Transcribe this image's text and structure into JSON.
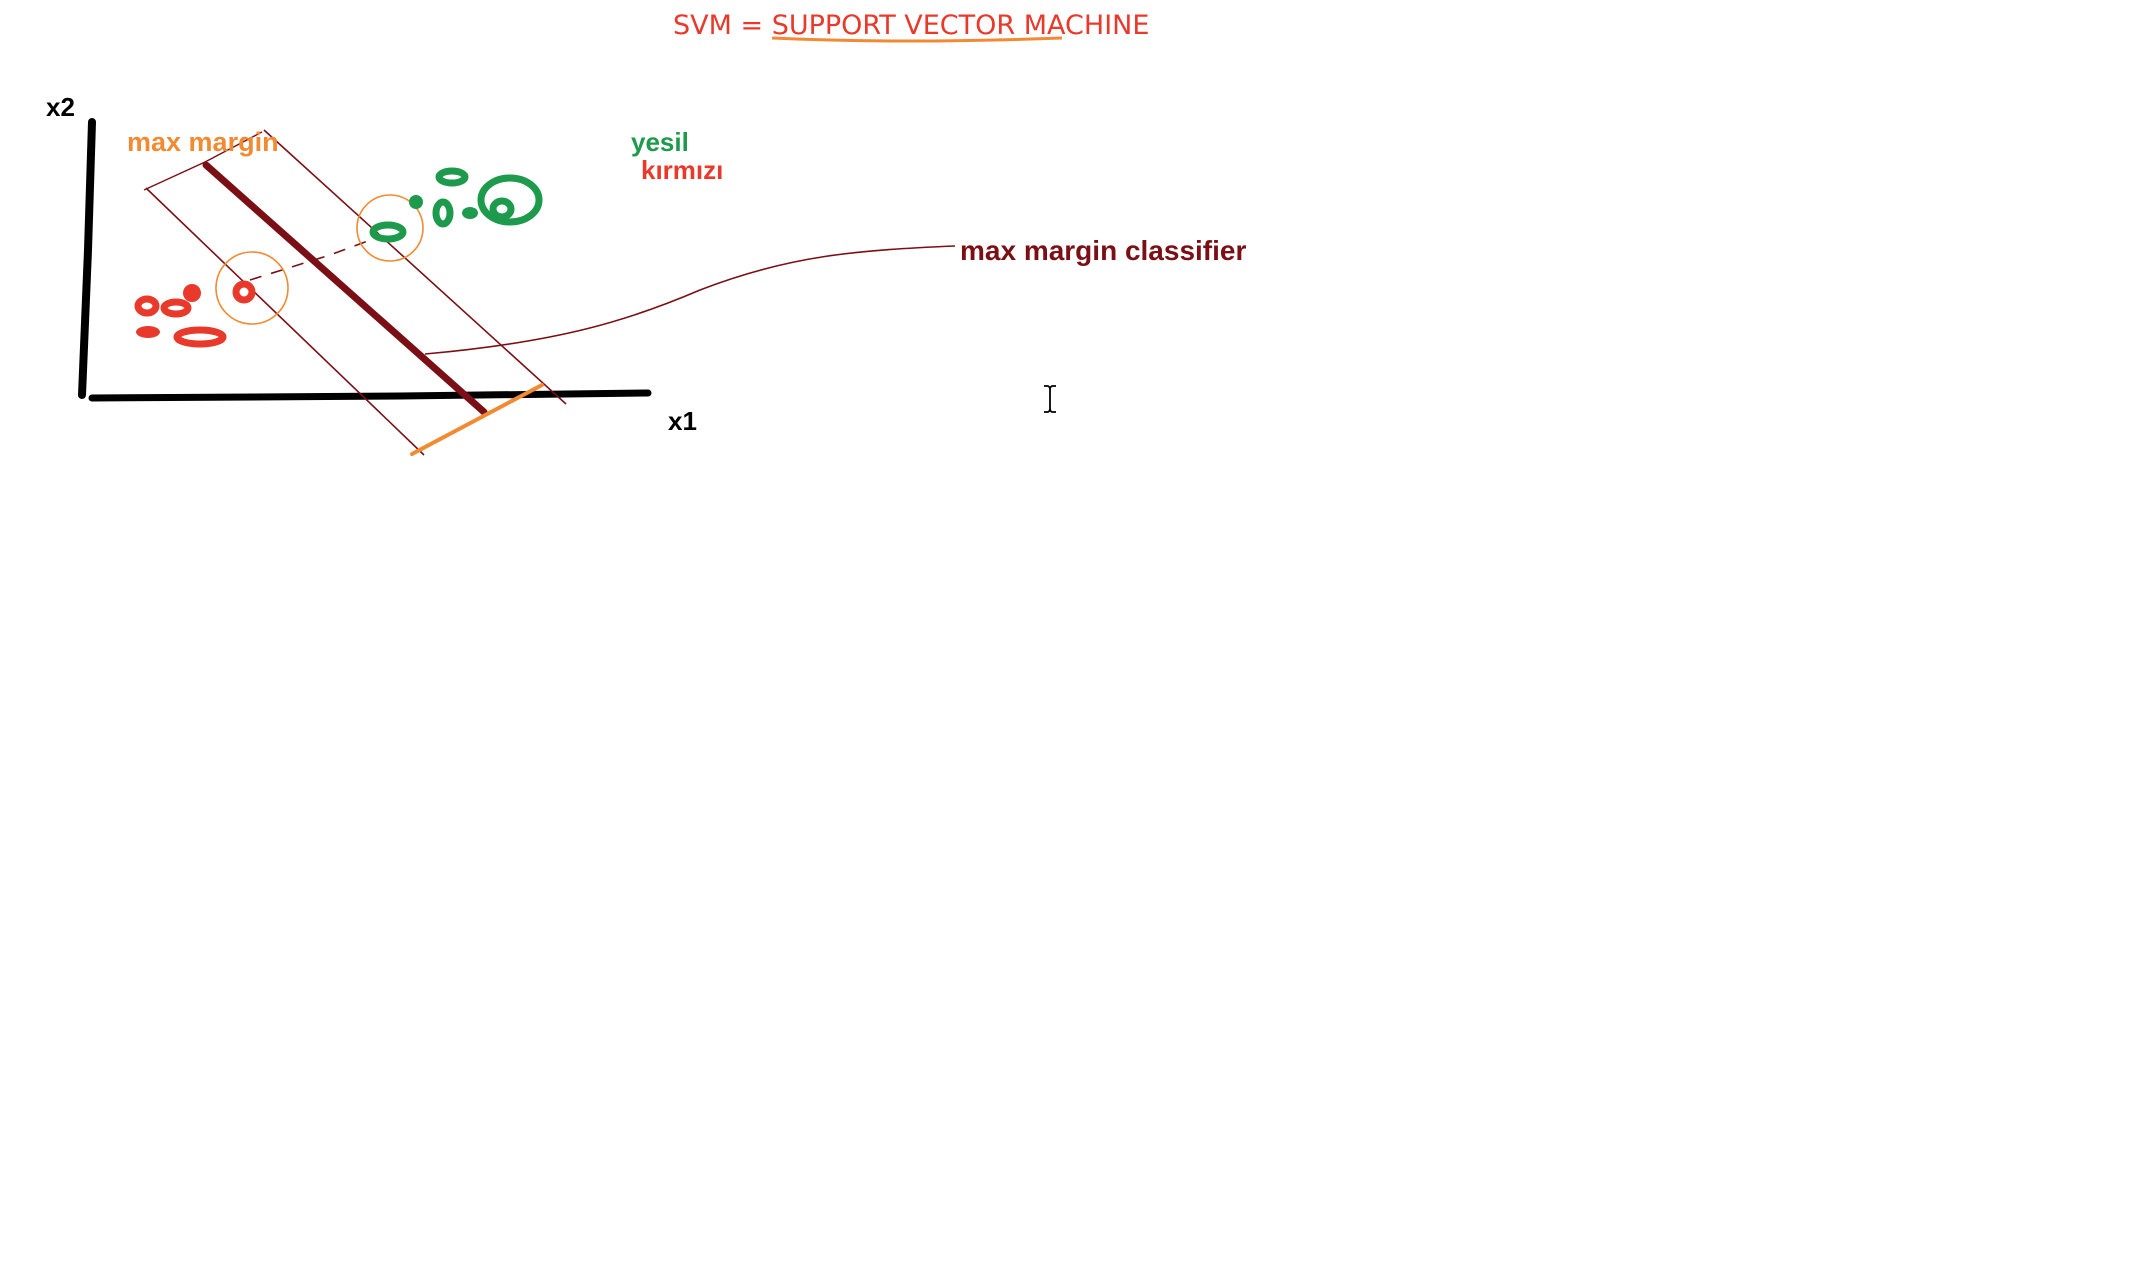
{
  "title": "SVM = SUPPORT VECTOR MACHINE",
  "axes": {
    "x_label": "x1",
    "y_label": "x2"
  },
  "annotations": {
    "max_margin": "max margin",
    "classifier": "max margin classifier"
  },
  "legend": {
    "green_label": "yesil",
    "red_label": "kırmızı"
  },
  "colors": {
    "title": "#e8392b",
    "axis": "#000000",
    "hyperplane": "#7a1016",
    "margin_boundary": "#7a1016",
    "margin_measure": "#f28a33",
    "support_vector_circle": "#f28a33",
    "green_class": "#1e9a4c",
    "red_class": "#e8392b",
    "underline": "#f28a33"
  },
  "icons": {
    "cursor": "text-cursor-icon"
  }
}
